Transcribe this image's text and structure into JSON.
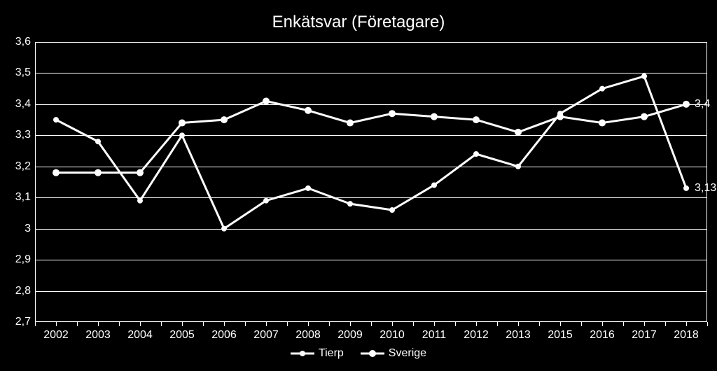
{
  "chart": {
    "type": "line",
    "title": "Enkätsvar (Företagare)",
    "title_fontsize": 24,
    "title_color": "#ffffff",
    "background_color": "#000000",
    "plot_border_color": "#ffffff",
    "grid_color": "#ffffff",
    "axis_label_color": "#ffffff",
    "axis_label_fontsize": 16,
    "ylim_min": 2.7,
    "ylim_max": 3.6,
    "ytick_step": 0.1,
    "ytick_labels": [
      "2,7",
      "2,8",
      "2,9",
      "3",
      "3,1",
      "3,2",
      "3,3",
      "3,4",
      "3,5",
      "3,6"
    ],
    "categories": [
      "2002",
      "2003",
      "2004",
      "2005",
      "2006",
      "2007",
      "2008",
      "2009",
      "2010",
      "2011",
      "2012",
      "2013",
      "2015",
      "2016",
      "2017",
      "2018"
    ],
    "series": [
      {
        "name": "Tierp",
        "color": "#ffffff",
        "line_width": 3,
        "marker_size": 8,
        "values": [
          3.35,
          3.28,
          3.09,
          3.3,
          3.0,
          3.09,
          3.13,
          3.08,
          3.06,
          3.14,
          3.24,
          3.2,
          3.37,
          3.45,
          3.49,
          3.13
        ],
        "end_label": "3,13"
      },
      {
        "name": "Sverige",
        "color": "#ffffff",
        "line_width": 3,
        "marker_size": 10,
        "values": [
          3.18,
          3.18,
          3.18,
          3.34,
          3.35,
          3.41,
          3.38,
          3.34,
          3.37,
          3.36,
          3.35,
          3.31,
          3.36,
          3.34,
          3.36,
          3.4
        ],
        "end_label": "3,4"
      }
    ],
    "legend": {
      "position": "bottom",
      "items": [
        "Tierp",
        "Sverige"
      ]
    }
  }
}
